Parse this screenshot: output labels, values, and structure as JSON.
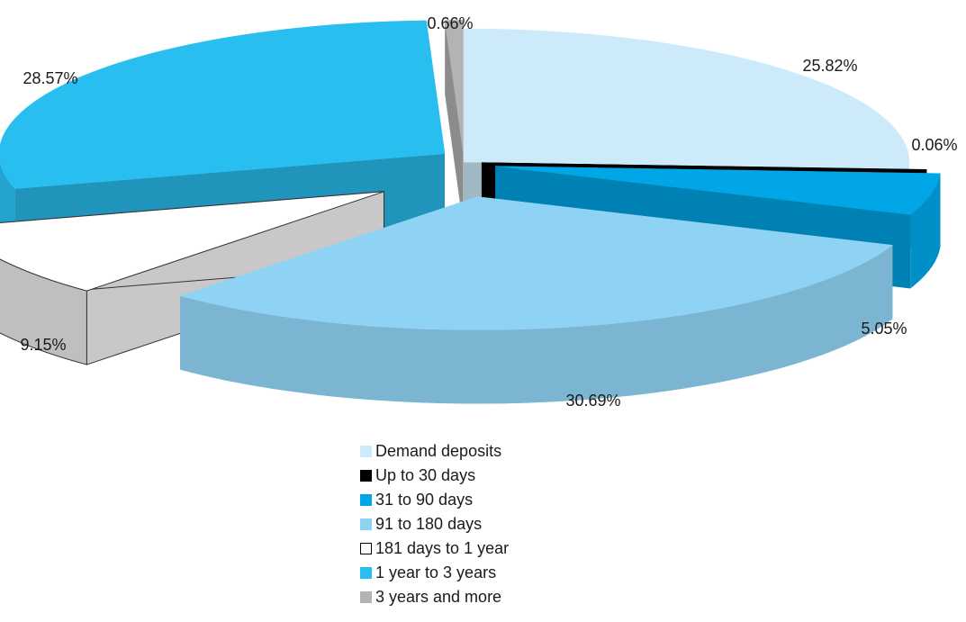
{
  "chart_data": {
    "type": "pie",
    "style": "3d-exploded",
    "title": "",
    "categories": [
      "Demand deposits",
      "Up to 30 days",
      "31 to 90 days",
      "91 to 180 days",
      "181 days to 1 year",
      "1 year to 3 years",
      "3 years and more"
    ],
    "values": [
      25.82,
      0.06,
      5.05,
      30.69,
      9.15,
      28.57,
      0.66
    ],
    "data_labels": [
      "25.82%",
      "0.06%",
      "5.05%",
      "30.69%",
      "9.15%",
      "28.57%",
      "0.66%"
    ],
    "colors": [
      "#cdeafb",
      "#000000",
      "#00a6e6",
      "#8fd3f4",
      "#ffffff",
      "#29bef0",
      "#b3b3b3"
    ],
    "legend_position": "bottom"
  }
}
